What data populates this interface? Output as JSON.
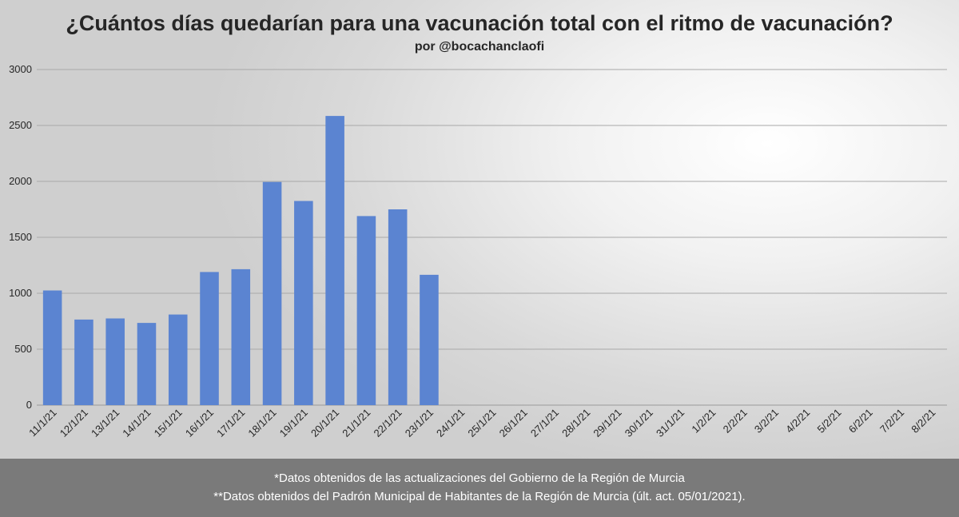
{
  "chart_data": {
    "type": "bar",
    "title": "¿Cuántos días quedarían para una vacunación total con el ritmo de vacunación?",
    "subtitle": "por @bocachanclaofi",
    "xlabel": "",
    "ylabel": "",
    "ylim": [
      0,
      3000
    ],
    "yticks": [
      0,
      500,
      1000,
      1500,
      2000,
      2500,
      3000
    ],
    "grid": true,
    "bar_color": "#5b84d1",
    "categories": [
      "11/1/21",
      "12/1/21",
      "13/1/21",
      "14/1/21",
      "15/1/21",
      "16/1/21",
      "17/1/21",
      "18/1/21",
      "19/1/21",
      "20/1/21",
      "21/1/21",
      "22/1/21",
      "23/1/21",
      "24/1/21",
      "25/1/21",
      "26/1/21",
      "27/1/21",
      "28/1/21",
      "29/1/21",
      "30/1/21",
      "31/1/21",
      "1/2/21",
      "2/2/21",
      "3/2/21",
      "4/2/21",
      "5/2/21",
      "6/2/21",
      "7/2/21",
      "8/2/21"
    ],
    "values": [
      1025,
      765,
      775,
      735,
      810,
      1190,
      1215,
      1995,
      1825,
      2585,
      1690,
      1750,
      1165,
      null,
      null,
      null,
      null,
      null,
      null,
      null,
      null,
      null,
      null,
      null,
      null,
      null,
      null,
      null,
      null
    ]
  },
  "footer": {
    "note1": "*Datos obtenidos de las actualizaciones del Gobierno de la Región de Murcia",
    "note2": "**Datos obtenidos del Padrón Municipal de Habitantes de la Región de Murcia (últ. act. 05/01/2021)."
  }
}
